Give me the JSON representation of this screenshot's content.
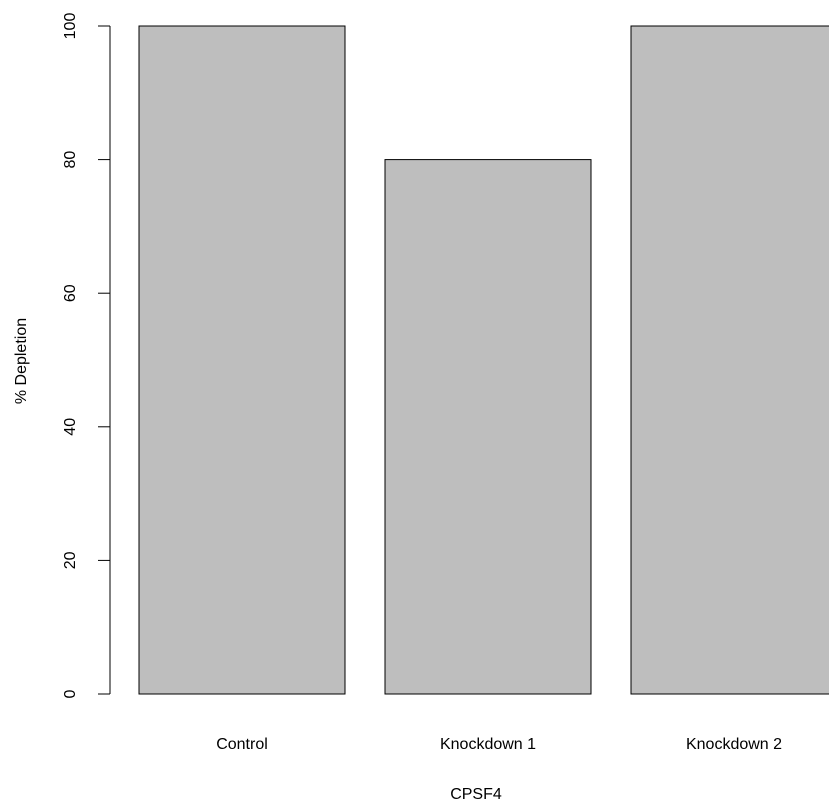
{
  "chart_data": {
    "type": "bar",
    "title": "",
    "xlabel": "CPSF4",
    "ylabel": "% Depletion",
    "categories": [
      "Control",
      "Knockdown 1",
      "Knockdown 2"
    ],
    "values": [
      100,
      80,
      100
    ],
    "ylim": [
      0,
      100
    ],
    "yticks": [
      0,
      20,
      40,
      60,
      80,
      100
    ],
    "bar_color": "#bebebe",
    "grid": false,
    "legend": "none"
  }
}
